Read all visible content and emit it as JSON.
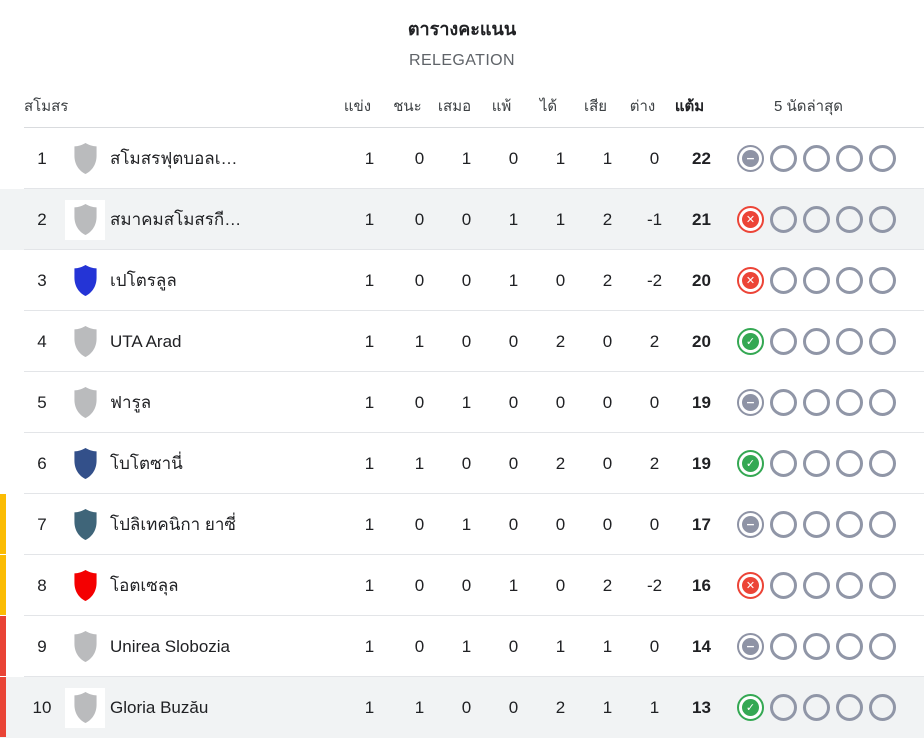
{
  "title": "ตารางคะแนน",
  "subtitle": "RELEGATION",
  "columns": {
    "club": "สโมสร",
    "played": "แข่ง",
    "won": "ชนะ",
    "drawn": "เสมอ",
    "lost": "แพ้",
    "goals_for": "ได้",
    "goals_against": "เสีย",
    "goal_diff": "ต่าง",
    "points": "แต้ม",
    "form": "5 นัดล่าสุด"
  },
  "zone_colors": {
    "playout": "#FBBC04",
    "relegation": "#E94335"
  },
  "form_styles": {
    "win": {
      "color": "#34A853",
      "glyph": "✓"
    },
    "loss": {
      "color": "#EC4437",
      "glyph": "✕"
    },
    "draw": {
      "color": "#8E93A5",
      "glyph": "−"
    }
  },
  "highlight_color": "#F1F3F4",
  "rows": [
    {
      "pos": "1",
      "team": "สโมสรฟุตบอลเ…",
      "crest_color": "#BABBBD",
      "highlighted": false,
      "zone": null,
      "stats": [
        "1",
        "0",
        "1",
        "0",
        "1",
        "1",
        "0"
      ],
      "points": "22",
      "form": [
        "draw",
        null,
        null,
        null,
        null
      ]
    },
    {
      "pos": "2",
      "team": "สมาคมสโมสรกี…",
      "crest_color": "#BABBBD",
      "highlighted": true,
      "zone": null,
      "stats": [
        "1",
        "0",
        "0",
        "1",
        "1",
        "2",
        "-1"
      ],
      "points": "21",
      "form": [
        "loss",
        null,
        null,
        null,
        null
      ]
    },
    {
      "pos": "3",
      "team": "เปโตรลูล",
      "crest_color": "#2434D6",
      "highlighted": false,
      "zone": null,
      "stats": [
        "1",
        "0",
        "0",
        "1",
        "0",
        "2",
        "-2"
      ],
      "points": "20",
      "form": [
        "loss",
        null,
        null,
        null,
        null
      ]
    },
    {
      "pos": "4",
      "team": "UTA Arad",
      "crest_color": "#BABBBD",
      "highlighted": false,
      "zone": null,
      "stats": [
        "1",
        "1",
        "0",
        "0",
        "2",
        "0",
        "2"
      ],
      "points": "20",
      "form": [
        "win",
        null,
        null,
        null,
        null
      ]
    },
    {
      "pos": "5",
      "team": "ฟารูล",
      "crest_color": "#BABBBD",
      "highlighted": false,
      "zone": null,
      "stats": [
        "1",
        "0",
        "1",
        "0",
        "0",
        "0",
        "0"
      ],
      "points": "19",
      "form": [
        "draw",
        null,
        null,
        null,
        null
      ]
    },
    {
      "pos": "6",
      "team": "โบโตซานี่",
      "crest_color": "#33508A",
      "highlighted": false,
      "zone": null,
      "stats": [
        "1",
        "1",
        "0",
        "0",
        "2",
        "0",
        "2"
      ],
      "points": "19",
      "form": [
        "win",
        null,
        null,
        null,
        null
      ]
    },
    {
      "pos": "7",
      "team": "โปลิเทคนิกา ยาซี่",
      "crest_color": "#3F6579",
      "highlighted": false,
      "zone": "playout",
      "stats": [
        "1",
        "0",
        "1",
        "0",
        "0",
        "0",
        "0"
      ],
      "points": "17",
      "form": [
        "draw",
        null,
        null,
        null,
        null
      ]
    },
    {
      "pos": "8",
      "team": "โอตเซลุล",
      "crest_color": "#F40001",
      "highlighted": false,
      "zone": "playout",
      "stats": [
        "1",
        "0",
        "0",
        "1",
        "0",
        "2",
        "-2"
      ],
      "points": "16",
      "form": [
        "loss",
        null,
        null,
        null,
        null
      ]
    },
    {
      "pos": "9",
      "team": "Unirea Slobozia",
      "crest_color": "#BABBBD",
      "highlighted": false,
      "zone": "relegation",
      "stats": [
        "1",
        "0",
        "1",
        "0",
        "1",
        "1",
        "0"
      ],
      "points": "14",
      "form": [
        "draw",
        null,
        null,
        null,
        null
      ]
    },
    {
      "pos": "10",
      "team": "Gloria Buzău",
      "crest_color": "#BABBBD",
      "highlighted": true,
      "zone": "relegation",
      "stats": [
        "1",
        "1",
        "0",
        "0",
        "2",
        "1",
        "1"
      ],
      "points": "13",
      "form": [
        "win",
        null,
        null,
        null,
        null
      ]
    }
  ]
}
